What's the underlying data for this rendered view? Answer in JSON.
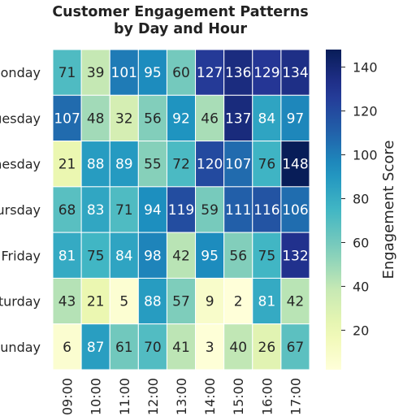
{
  "chart_data": {
    "type": "heatmap",
    "title_lines": [
      "Customer Engagement Patterns",
      "by Day and Hour"
    ],
    "rows": [
      "Monday",
      "Tuesday",
      "Wednesday",
      "Thursday",
      "Friday",
      "Saturday",
      "Sunday"
    ],
    "columns": [
      "09:00",
      "10:00",
      "11:00",
      "12:00",
      "13:00",
      "14:00",
      "15:00",
      "16:00",
      "17:00"
    ],
    "values": [
      [
        71,
        39,
        101,
        95,
        60,
        127,
        136,
        129,
        134
      ],
      [
        107,
        48,
        32,
        56,
        92,
        46,
        137,
        84,
        97
      ],
      [
        21,
        88,
        89,
        55,
        72,
        120,
        107,
        76,
        148
      ],
      [
        68,
        83,
        71,
        94,
        119,
        59,
        111,
        116,
        106
      ],
      [
        81,
        75,
        84,
        98,
        42,
        95,
        56,
        75,
        132
      ],
      [
        43,
        21,
        5,
        88,
        57,
        9,
        2,
        81,
        42
      ],
      [
        6,
        87,
        61,
        70,
        41,
        3,
        40,
        26,
        67
      ]
    ],
    "colorbar": {
      "label": "Engagement Score",
      "ticks": [
        20,
        40,
        60,
        80,
        100,
        120,
        140
      ],
      "vmin": 2,
      "vmax": 148,
      "colormap": "YlGnBu"
    },
    "annotations": true,
    "grid_lines_color": "#ffffff"
  }
}
